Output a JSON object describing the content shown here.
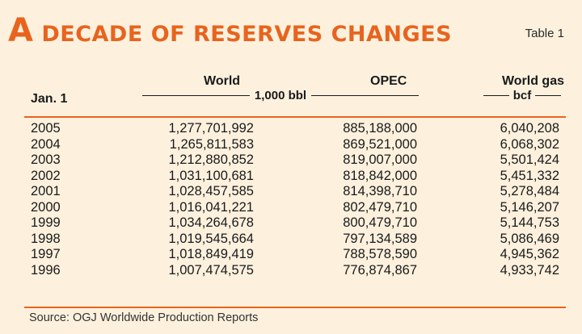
{
  "title": {
    "first_letter": "A",
    "rest": " DECADE OF RESERVES CHANGES"
  },
  "table_label": "Table 1",
  "headers": {
    "jan": "Jan. 1",
    "world": "World",
    "opec": "OPEC",
    "world_gas": "World gas",
    "unit_bbl": "1,000 bbl",
    "unit_bcf": "bcf"
  },
  "rows": [
    {
      "year": "2005",
      "world": "1,277,701,992",
      "opec": "885,188,000",
      "gas": "6,040,208"
    },
    {
      "year": "2004",
      "world": "1,265,811,583",
      "opec": "869,521,000",
      "gas": "6,068,302"
    },
    {
      "year": "2003",
      "world": "1,212,880,852",
      "opec": "819,007,000",
      "gas": "5,501,424"
    },
    {
      "year": "2002",
      "world": "1,031,100,681",
      "opec": "818,842,000",
      "gas": "5,451,332"
    },
    {
      "year": "2001",
      "world": "1,028,457,585",
      "opec": "814,398,710",
      "gas": "5,278,484"
    },
    {
      "year": "2000",
      "world": "1,016,041,221",
      "opec": "802,479,710",
      "gas": "5,146,207"
    },
    {
      "year": "1999",
      "world": "1,034,264,678",
      "opec": "800,479,710",
      "gas": "5,144,753"
    },
    {
      "year": "1998",
      "world": "1,019,545,664",
      "opec": "797,134,589",
      "gas": "5,086,469"
    },
    {
      "year": "1997",
      "world": "1,018,849,419",
      "opec": "788,578,590",
      "gas": "4,945,362"
    },
    {
      "year": "1996",
      "world": "1,007,474,575",
      "opec": "776,874,867",
      "gas": "4,933,742"
    }
  ],
  "source": "Source: OGJ Worldwide Production Reports",
  "colors": {
    "accent": "#e8641e",
    "background": "#fdf1de",
    "text": "#1a1a1a"
  }
}
